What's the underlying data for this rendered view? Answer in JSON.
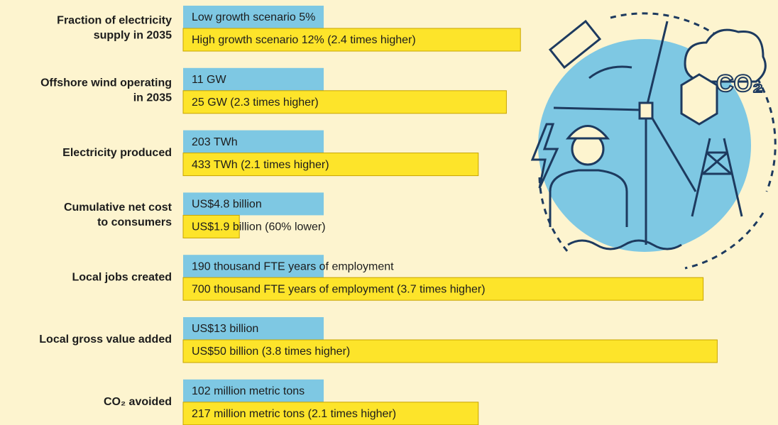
{
  "chart_data": {
    "type": "bar",
    "low_color": "#7ec8e3",
    "high_color": "#fde42a",
    "rows": [
      {
        "label": [
          "Fraction of electricity",
          "supply in 2035"
        ],
        "low": "Low growth scenario 5%",
        "high": "High growth scenario 12% (2.4 times higher)",
        "low_size": 1,
        "high_size": 2.4
      },
      {
        "label": [
          "Offshore wind operating",
          "in 2035"
        ],
        "low": "11 GW",
        "high": "25 GW (2.3 times higher)",
        "low_size": 1,
        "high_size": 2.3
      },
      {
        "label": [
          "Electricity produced"
        ],
        "low": "203 TWh",
        "high": "433 TWh (2.1 times higher)",
        "low_size": 1,
        "high_size": 2.1
      },
      {
        "label": [
          "Cumulative net cost",
          "to consumers"
        ],
        "low": "US$4.8 billion",
        "high": "US$1.9 billion (60% lower)",
        "low_size": 1,
        "high_size": 0.4
      },
      {
        "label": [
          "Local jobs created"
        ],
        "low": "190 thousand FTE years of employment",
        "high": "700 thousand FTE years of employment (3.7 times higher)",
        "low_size": 1,
        "high_size": 3.7
      },
      {
        "label": [
          "Local gross value added"
        ],
        "low": "US$13 billion",
        "high": "US$50 billion (3.8 times higher)",
        "low_size": 1,
        "high_size": 3.8
      },
      {
        "label": [
          "CO₂ avoided"
        ],
        "low": "102 million metric tons",
        "high": "217 million metric tons (2.1 times higher)",
        "low_size": 1,
        "high_size": 2.1
      }
    ],
    "illustration_label": "CO₂"
  }
}
